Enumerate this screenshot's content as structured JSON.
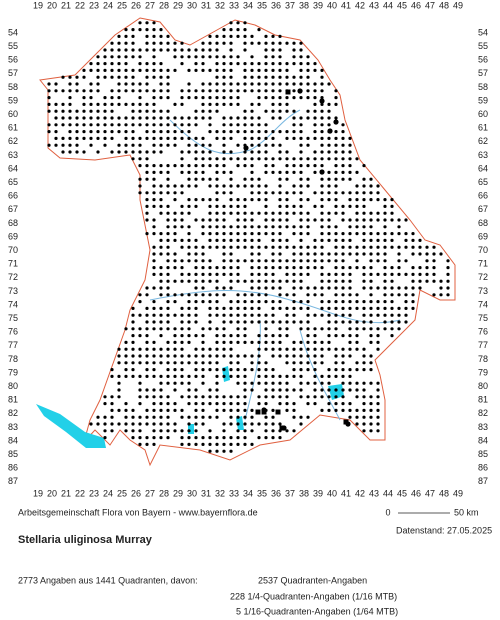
{
  "map": {
    "x_labels": [
      19,
      20,
      21,
      22,
      23,
      24,
      25,
      26,
      27,
      28,
      29,
      30,
      31,
      32,
      33,
      34,
      35,
      36,
      37,
      38,
      39,
      40,
      41,
      42,
      43,
      44,
      45,
      46,
      47,
      48,
      49
    ],
    "y_labels": [
      54,
      55,
      56,
      57,
      58,
      59,
      60,
      61,
      62,
      63,
      64,
      65,
      66,
      67,
      68,
      69,
      70,
      71,
      72,
      73,
      74,
      75,
      76,
      77,
      78,
      79,
      80,
      81,
      82,
      83,
      84,
      85,
      86,
      87
    ],
    "credit": "Arbeitsgemeinschaft Flora von Bayern - www.bayernflora.de",
    "scale_start": "0",
    "scale_end": "50 km",
    "date": "Datenstand: 27.05.2025",
    "species": "Stellaria uliginosa Murray",
    "summary": "2773 Angaben aus 1441 Quadranten, davon:",
    "counts": [
      "2537 Quadranten-Angaben",
      "228 1/4-Quadranten-Angaben (1/16 MTB)",
      "5 1/16-Quadranten-Angaben (1/64 MTB)"
    ]
  }
}
